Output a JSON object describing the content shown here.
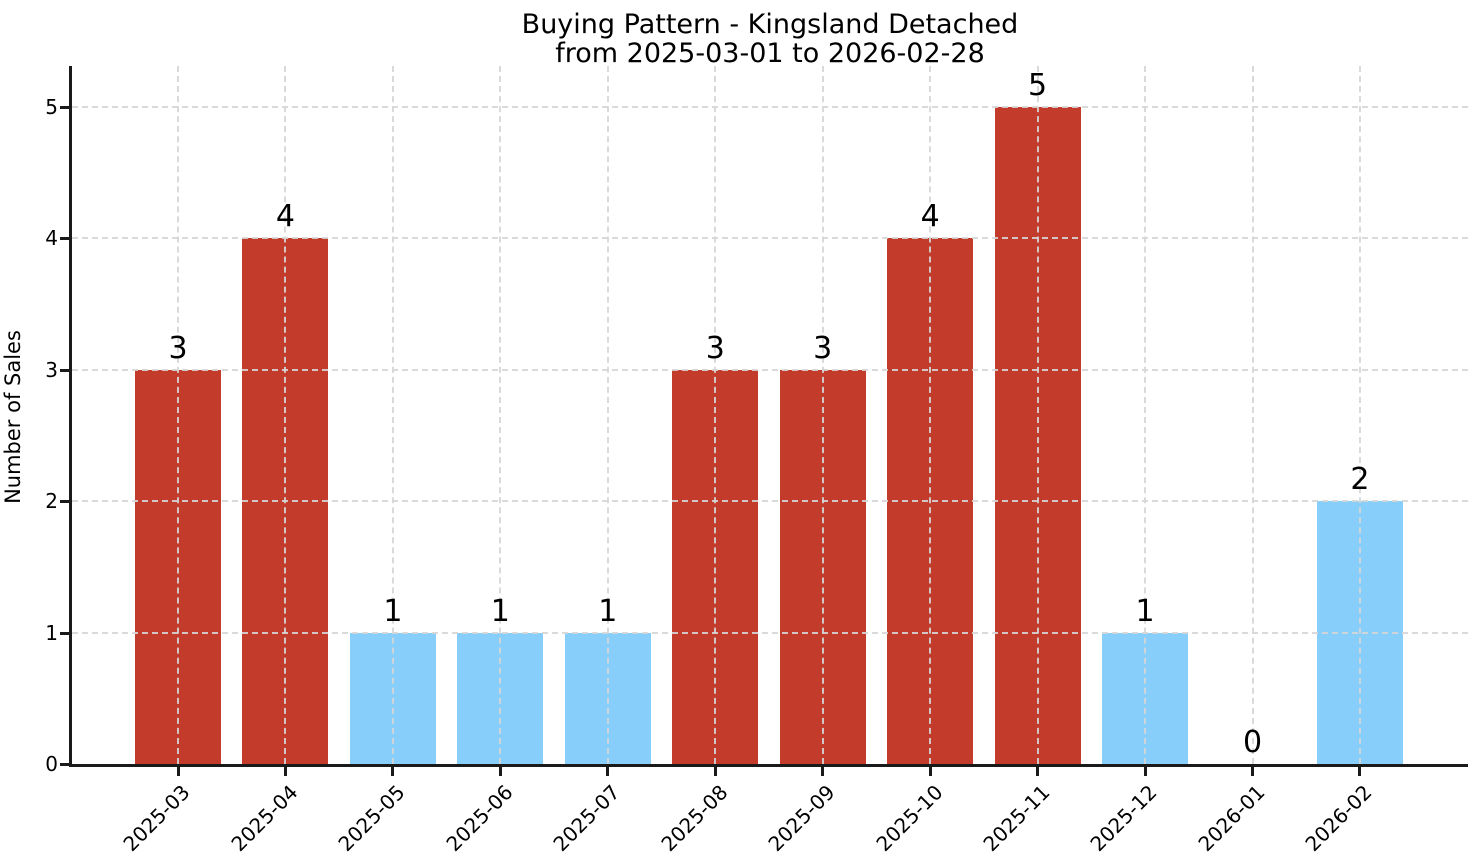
{
  "chart_data": {
    "type": "bar",
    "title": "Buying Pattern - Kingsland Detached",
    "subtitle": "from 2025-03-01 to 2026-02-28",
    "ylabel": "Number of Sales",
    "xlabel": "",
    "categories": [
      "2025-03",
      "2025-04",
      "2025-05",
      "2025-06",
      "2025-07",
      "2025-08",
      "2025-09",
      "2025-10",
      "2025-11",
      "2025-12",
      "2026-01",
      "2026-02"
    ],
    "values": [
      3,
      4,
      1,
      1,
      1,
      3,
      3,
      4,
      5,
      1,
      0,
      2
    ],
    "bar_colors": [
      "#C33B2B",
      "#C33B2B",
      "#87CEFA",
      "#87CEFA",
      "#87CEFA",
      "#C33B2B",
      "#C33B2B",
      "#C33B2B",
      "#C33B2B",
      "#87CEFA",
      "#87CEFA",
      "#87CEFA"
    ],
    "yticks": [
      0,
      1,
      2,
      3,
      4,
      5
    ],
    "ylim": [
      0,
      5.31
    ],
    "grid": {
      "style": "dashed",
      "horizontal": true,
      "vertical": true,
      "color": "#D6D6D6",
      "drawn_above_bars": true
    },
    "legend": "none",
    "colors": {
      "high_bar": "#C33B2B",
      "low_bar": "#87CEFA",
      "axis": "#1A1A1A",
      "text": "#000000",
      "background": "#FFFFFF"
    }
  }
}
